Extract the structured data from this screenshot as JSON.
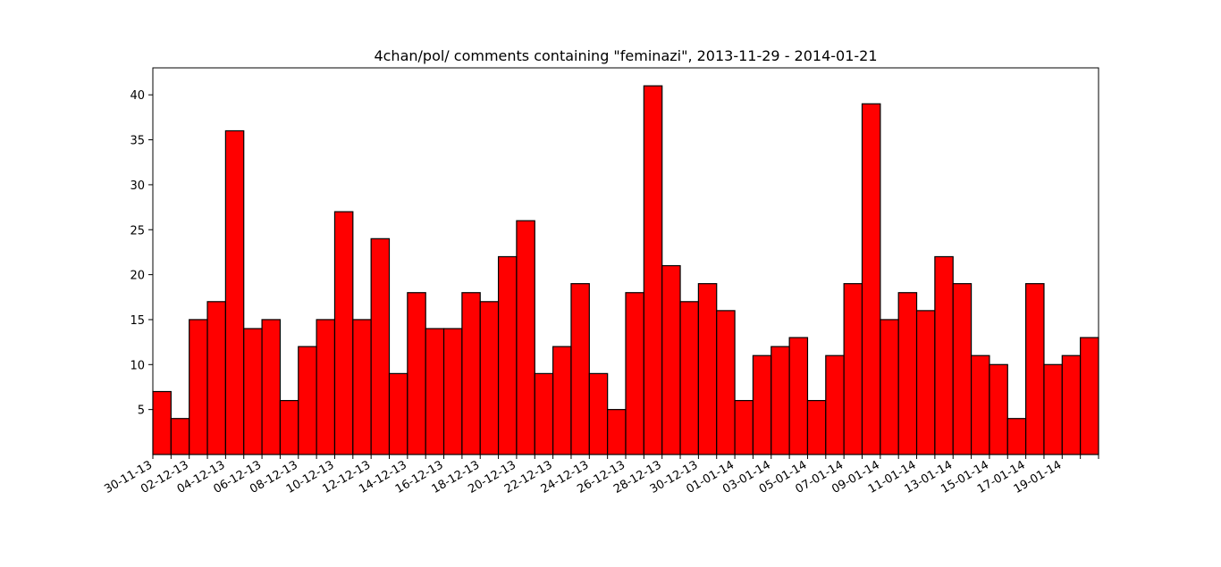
{
  "chart_data": {
    "type": "bar",
    "title": "4chan/pol/ comments containing \"feminazi\", 2013-11-29 - 2014-01-21",
    "xlabel": "",
    "ylabel": "",
    "bar_color": "#ff0000",
    "edge_color": "#000000",
    "ylim": [
      0,
      43
    ],
    "yticks": [
      5,
      10,
      15,
      20,
      25,
      30,
      35,
      40
    ],
    "x": [
      "30-11-13",
      "01-12-13",
      "02-12-13",
      "03-12-13",
      "04-12-13",
      "05-12-13",
      "06-12-13",
      "07-12-13",
      "08-12-13",
      "09-12-13",
      "10-12-13",
      "11-12-13",
      "12-12-13",
      "13-12-13",
      "14-12-13",
      "15-12-13",
      "16-12-13",
      "17-12-13",
      "18-12-13",
      "19-12-13",
      "20-12-13",
      "21-12-13",
      "22-12-13",
      "23-12-13",
      "24-12-13",
      "25-12-13",
      "26-12-13",
      "27-12-13",
      "28-12-13",
      "29-12-13",
      "30-12-13",
      "31-12-13",
      "01-01-14",
      "02-01-14",
      "03-01-14",
      "04-01-14",
      "05-01-14",
      "06-01-14",
      "07-01-14",
      "08-01-14",
      "09-01-14",
      "10-01-14",
      "11-01-14",
      "12-01-14",
      "13-01-14",
      "14-01-14",
      "15-01-14",
      "16-01-14",
      "17-01-14",
      "18-01-14",
      "19-01-14",
      "20-01-14"
    ],
    "values": [
      7,
      4,
      15,
      17,
      36,
      14,
      15,
      6,
      12,
      15,
      27,
      15,
      24,
      9,
      18,
      14,
      14,
      18,
      17,
      22,
      26,
      9,
      12,
      19,
      9,
      5,
      18,
      41,
      21,
      17,
      19,
      16,
      6,
      11,
      12,
      13,
      6,
      11,
      19,
      39,
      15,
      18,
      16,
      22,
      19,
      11,
      10,
      4,
      19,
      10,
      11,
      13
    ],
    "xtick_labels": [
      "30-11-13",
      "02-12-13",
      "04-12-13",
      "06-12-13",
      "08-12-13",
      "10-12-13",
      "12-12-13",
      "14-12-13",
      "16-12-13",
      "18-12-13",
      "20-12-13",
      "22-12-13",
      "24-12-13",
      "26-12-13",
      "28-12-13",
      "30-12-13",
      "01-01-14",
      "03-01-14",
      "05-01-14",
      "07-01-14",
      "09-01-14",
      "11-01-14",
      "13-01-14",
      "15-01-14",
      "17-01-14",
      "19-01-14"
    ],
    "grid": false,
    "legend": "none"
  }
}
